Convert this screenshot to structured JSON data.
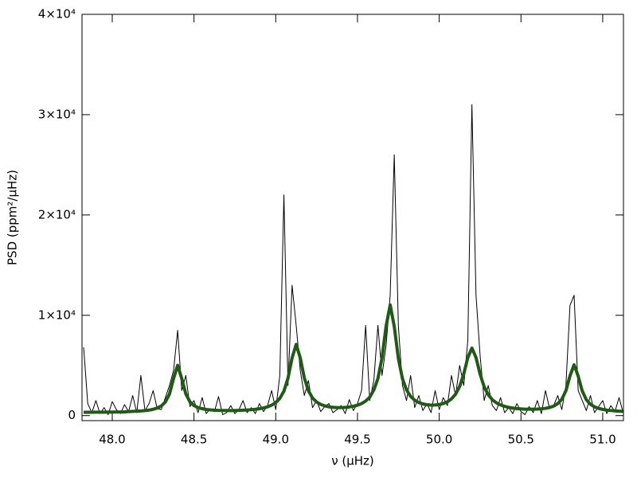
{
  "chart_data": {
    "type": "line",
    "xlabel": "ν (μHz)",
    "ylabel": "PSD (ppm²/μHz)",
    "x": [
      47.825,
      47.85,
      47.875,
      47.9,
      47.925,
      47.95,
      47.975,
      48.0,
      48.025,
      48.05,
      48.075,
      48.1,
      48.125,
      48.15,
      48.175,
      48.2,
      48.225,
      48.25,
      48.275,
      48.3,
      48.325,
      48.35,
      48.375,
      48.4,
      48.425,
      48.45,
      48.475,
      48.5,
      48.525,
      48.55,
      48.575,
      48.6,
      48.625,
      48.65,
      48.675,
      48.7,
      48.725,
      48.75,
      48.775,
      48.8,
      48.825,
      48.85,
      48.875,
      48.9,
      48.925,
      48.95,
      48.975,
      49.0,
      49.025,
      49.05,
      49.075,
      49.1,
      49.125,
      49.15,
      49.175,
      49.2,
      49.225,
      49.25,
      49.275,
      49.3,
      49.325,
      49.35,
      49.375,
      49.4,
      49.425,
      49.45,
      49.475,
      49.5,
      49.525,
      49.55,
      49.575,
      49.6,
      49.625,
      49.65,
      49.675,
      49.7,
      49.725,
      49.75,
      49.775,
      49.8,
      49.825,
      49.85,
      49.875,
      49.9,
      49.925,
      49.95,
      49.975,
      50.0,
      50.025,
      50.05,
      50.075,
      50.1,
      50.125,
      50.15,
      50.175,
      50.2,
      50.225,
      50.25,
      50.275,
      50.3,
      50.325,
      50.35,
      50.375,
      50.4,
      50.425,
      50.45,
      50.475,
      50.5,
      50.525,
      50.55,
      50.575,
      50.6,
      50.625,
      50.65,
      50.675,
      50.7,
      50.725,
      50.75,
      50.775,
      50.8,
      50.825,
      50.85,
      50.875,
      50.9,
      50.925,
      50.95,
      50.975,
      51.0,
      51.025,
      51.05,
      51.075,
      51.1,
      51.125
    ],
    "series": [
      {
        "color": "#000000",
        "values": [
          6800,
          1200,
          300,
          1500,
          200,
          800,
          100,
          1400,
          600,
          200,
          1100,
          400,
          2000,
          300,
          4000,
          500,
          1200,
          2500,
          700,
          600,
          1800,
          3000,
          4500,
          8500,
          2500,
          4000,
          900,
          1500,
          300,
          1800,
          200,
          700,
          400,
          1900,
          100,
          300,
          1000,
          200,
          600,
          1500,
          300,
          800,
          200,
          1200,
          400,
          1000,
          2500,
          600,
          4000,
          22000,
          3000,
          13000,
          9000,
          4500,
          2000,
          3500,
          800,
          1500,
          400,
          900,
          1200,
          300,
          600,
          1000,
          200,
          1600,
          500,
          1200,
          2500,
          9000,
          1500,
          3500,
          9000,
          4000,
          7000,
          12000,
          26000,
          9000,
          3000,
          1500,
          4000,
          800,
          2000,
          500,
          1200,
          300,
          2500,
          600,
          1800,
          1000,
          4000,
          2000,
          5000,
          3000,
          7500,
          31000,
          12000,
          6000,
          1500,
          3000,
          1000,
          500,
          1800,
          300,
          800,
          200,
          1200,
          400,
          100,
          900,
          300,
          1500,
          200,
          2500,
          700,
          1000,
          2000,
          600,
          3000,
          11000,
          12000,
          2500,
          1500,
          500,
          2000,
          300,
          900,
          1500,
          200,
          1000,
          400,
          1800,
          300
        ]
      },
      {
        "color": "#1e5c14",
        "values": [
          330,
          330,
          335,
          340,
          340,
          345,
          350,
          355,
          360,
          365,
          375,
          400,
          420,
          440,
          465,
          500,
          550,
          630,
          755,
          970,
          1360,
          2150,
          3700,
          5020,
          3700,
          2160,
          1380,
          1000,
          800,
          690,
          610,
          570,
          545,
          525,
          515,
          510,
          505,
          515,
          525,
          540,
          560,
          587,
          630,
          686,
          765,
          878,
          1044,
          1300,
          1718,
          2440,
          3740,
          5750,
          7100,
          5750,
          3750,
          2470,
          1760,
          1355,
          1117,
          972,
          879,
          827,
          803,
          801,
          820,
          863,
          933,
          1041,
          1203,
          1451,
          1841,
          2556,
          3700,
          5735,
          8915,
          11035,
          8880,
          5710,
          3684,
          2560,
          1919,
          1541,
          1308,
          1166,
          1085,
          1048,
          1057,
          1107,
          1208,
          1382,
          1665,
          2136,
          2908,
          4151,
          5788,
          6730,
          5792,
          4136,
          2870,
          2075,
          1582,
          1269,
          1066,
          922,
          825,
          751,
          704,
          668,
          646,
          637,
          637,
          650,
          677,
          727,
          812,
          950,
          1193,
          1632,
          2484,
          3967,
          5071,
          3939,
          2445,
          1581,
          1130,
          874,
          721,
          622,
          554,
          507,
          471,
          445,
          423
        ]
      }
    ],
    "xlim": [
      47.815,
      51.127
    ],
    "xticks": [
      {
        "value": 48,
        "label": "48.0"
      },
      {
        "value": 48.5,
        "label": "48.5"
      },
      {
        "value": 49,
        "label": "49.0"
      },
      {
        "value": 49.5,
        "label": "49.5"
      },
      {
        "value": 50,
        "label": "50.0"
      },
      {
        "value": 50.5,
        "label": "50.5"
      },
      {
        "value": 51,
        "label": "51.0"
      }
    ],
    "ylim": [
      -500,
      40000
    ],
    "yticks": [
      0,
      {
        "value": 10000,
        "label": "1×10⁴"
      },
      {
        "value": 20000,
        "label": "2×10⁴"
      },
      {
        "value": 30000,
        "label": "3×10⁴"
      },
      {
        "value": 40000,
        "label": "4×10⁴"
      }
    ]
  }
}
